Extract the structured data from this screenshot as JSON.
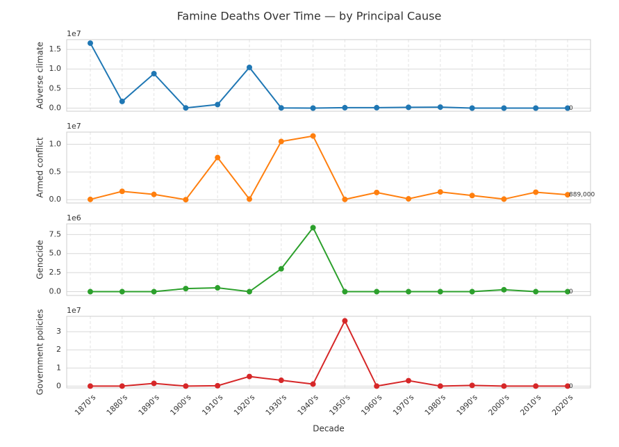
{
  "title": "Famine Deaths Over Time — by Principal Cause",
  "xlabel": "Decade",
  "categories": [
    "1870's",
    "1880's",
    "1890's",
    "1900's",
    "1910's",
    "1920's",
    "1930's",
    "1940's",
    "1950's",
    "1960's",
    "1970's",
    "1980's",
    "1990's",
    "2000's",
    "2010's",
    "2020's"
  ],
  "chart_data": [
    {
      "type": "line",
      "ylabel": "Adverse climate",
      "offset_label": "1e7",
      "grid": true,
      "ylim": [
        -800000,
        17500000
      ],
      "yticks": [
        {
          "value": 0,
          "label": "0.0"
        },
        {
          "value": 5000000,
          "label": "0.5"
        },
        {
          "value": 10000000,
          "label": "1.0"
        },
        {
          "value": 15000000,
          "label": "1.5"
        }
      ],
      "series": [
        {
          "name": "Adverse climate",
          "color": "#1f77b4",
          "values": [
            16600000,
            1700000,
            8800000,
            50000,
            900000,
            10400000,
            50000,
            0,
            100000,
            100000,
            200000,
            250000,
            0,
            0,
            0,
            0
          ],
          "value_labels": [
            null,
            null,
            null,
            null,
            null,
            null,
            null,
            null,
            null,
            null,
            null,
            null,
            null,
            null,
            null,
            "0"
          ]
        }
      ]
    },
    {
      "type": "line",
      "ylabel": "Armed conflict",
      "offset_label": "1e7",
      "grid": true,
      "ylim": [
        -600000,
        12200000
      ],
      "yticks": [
        {
          "value": 0,
          "label": "0.0"
        },
        {
          "value": 5000000,
          "label": "0.5"
        },
        {
          "value": 10000000,
          "label": "1.0"
        }
      ],
      "series": [
        {
          "name": "Armed conflict",
          "color": "#ff7f0e",
          "values": [
            50000,
            1500000,
            950000,
            0,
            7600000,
            100000,
            10500000,
            11500000,
            50000,
            1300000,
            150000,
            1400000,
            750000,
            100000,
            1350000,
            889000
          ],
          "value_labels": [
            null,
            null,
            null,
            null,
            null,
            null,
            null,
            null,
            null,
            null,
            null,
            null,
            null,
            null,
            null,
            "889,000"
          ]
        }
      ]
    },
    {
      "type": "line",
      "ylabel": "Genocide",
      "offset_label": "1e6",
      "grid": true,
      "ylim": [
        -500000,
        8900000
      ],
      "yticks": [
        {
          "value": 0,
          "label": "0.0"
        },
        {
          "value": 2500000,
          "label": "2.5"
        },
        {
          "value": 5000000,
          "label": "5.0"
        },
        {
          "value": 7500000,
          "label": "7.5"
        }
      ],
      "series": [
        {
          "name": "Genocide",
          "color": "#2ca02c",
          "values": [
            0,
            0,
            0,
            400000,
            500000,
            0,
            3000000,
            8400000,
            0,
            0,
            0,
            0,
            0,
            250000,
            0,
            0
          ],
          "value_labels": [
            null,
            null,
            null,
            null,
            null,
            null,
            null,
            null,
            null,
            null,
            null,
            null,
            null,
            null,
            null,
            "0"
          ]
        }
      ]
    },
    {
      "type": "line",
      "ylabel": "Government policies",
      "offset_label": "1e7",
      "grid": true,
      "ylim": [
        -1000000,
        38500000
      ],
      "yticks": [
        0,
        {
          "value": 10000000,
          "label": "1"
        },
        {
          "value": 20000000,
          "label": "2"
        },
        {
          "value": 30000000,
          "label": "3"
        }
      ],
      "series": [
        {
          "name": "Government policies",
          "color": "#d62728",
          "values": [
            0,
            0,
            1500000,
            0,
            200000,
            5300000,
            3200000,
            1100000,
            36000000,
            0,
            3000000,
            0,
            400000,
            0,
            0,
            0
          ],
          "value_labels": [
            null,
            null,
            null,
            null,
            null,
            null,
            null,
            null,
            null,
            null,
            null,
            null,
            null,
            null,
            null,
            "0"
          ]
        }
      ]
    }
  ]
}
